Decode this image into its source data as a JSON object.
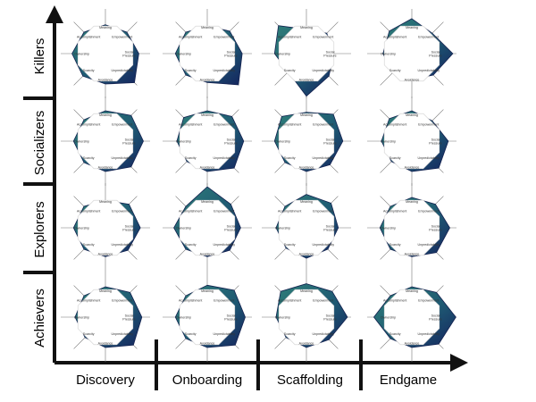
{
  "rows": [
    "Killers",
    "Socializers",
    "Explorers",
    "Achievers"
  ],
  "columns": [
    "Discovery",
    "Onboarding",
    "Scaffolding",
    "Endgame"
  ],
  "spokes": [
    "Meaning",
    "Empowerment",
    "Social Pressure",
    "Unpredictability",
    "Avoidance",
    "Scarcity",
    "Ownership",
    "Accomplishment"
  ],
  "colors": {
    "fill_dark": "#1b2f66",
    "fill_teal": "#2e7d78",
    "axis": "#111111",
    "octagon": "#ffffff"
  },
  "profiles": [
    [
      [
        0.95,
        1.0,
        1.1,
        1.35,
        1.0,
        1.05,
        1.1,
        1.0
      ],
      [
        0.9,
        1.05,
        1.15,
        1.45,
        0.95,
        1.0,
        1.05,
        1.0
      ],
      [
        0.8,
        0.95,
        0.9,
        1.05,
        1.4,
        0.85,
        1.05,
        1.3
      ],
      [
        1.15,
        0.95,
        1.35,
        1.0,
        0.85,
        0.9,
        0.95,
        1.05
      ]
    ],
    [
      [
        1.0,
        1.2,
        1.25,
        1.2,
        1.0,
        1.0,
        1.05,
        1.0
      ],
      [
        1.0,
        1.15,
        1.2,
        1.25,
        1.0,
        0.95,
        1.0,
        1.1
      ],
      [
        0.95,
        1.25,
        1.2,
        1.1,
        1.0,
        1.0,
        1.05,
        1.15
      ],
      [
        1.0,
        0.95,
        1.2,
        1.25,
        1.0,
        0.95,
        1.0,
        1.05
      ]
    ],
    [
      [
        0.9,
        1.1,
        1.15,
        1.05,
        0.95,
        1.0,
        1.05,
        1.0
      ],
      [
        1.35,
        1.1,
        1.1,
        1.05,
        0.95,
        1.0,
        1.1,
        1.0
      ],
      [
        1.1,
        1.15,
        1.05,
        1.0,
        1.0,
        0.95,
        1.0,
        1.0
      ],
      [
        1.0,
        1.1,
        1.25,
        1.15,
        0.95,
        1.0,
        1.05,
        1.0
      ]
    ],
    [
      [
        1.0,
        1.15,
        1.2,
        1.3,
        1.0,
        0.95,
        1.0,
        1.0
      ],
      [
        1.05,
        1.25,
        1.25,
        1.3,
        1.0,
        1.0,
        1.05,
        1.0
      ],
      [
        1.1,
        1.2,
        1.35,
        1.05,
        1.0,
        0.95,
        1.0,
        1.2
      ],
      [
        1.0,
        1.15,
        1.45,
        1.25,
        1.0,
        1.0,
        1.25,
        1.0
      ]
    ]
  ]
}
